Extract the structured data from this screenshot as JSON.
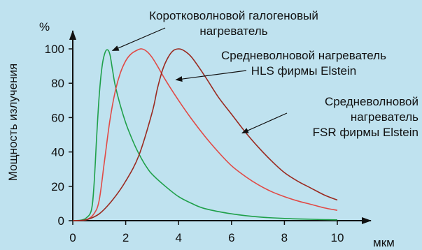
{
  "chart_data": {
    "type": "line",
    "title": "",
    "xlabel": "мкм",
    "ylabel": "Мощность излучения",
    "yunit": "%",
    "xlim": [
      0,
      10
    ],
    "ylim": [
      0,
      100
    ],
    "xticks": [
      "0",
      "2",
      "4",
      "6",
      "8",
      "10"
    ],
    "yticks": [
      "0",
      "20",
      "40",
      "60",
      "80",
      "100"
    ],
    "grid": false,
    "legend": "none",
    "series": [
      {
        "name": "Коротковолновой галогеновый нагреватель",
        "color": "#1fa04a",
        "x": [
          0,
          0.3,
          0.5,
          0.7,
          0.8,
          0.9,
          1.0,
          1.1,
          1.2,
          1.3,
          1.4,
          1.5,
          1.6,
          1.8,
          2.0,
          2.2,
          2.4,
          2.6,
          2.8,
          3.0,
          3.5,
          4.0,
          4.5,
          5.0,
          6.0,
          7.0,
          8.0,
          9.0,
          10.0
        ],
        "values": [
          0,
          0.3,
          1.5,
          6,
          20,
          48,
          73,
          89,
          97,
          99.5,
          97,
          88,
          79,
          67,
          57,
          49,
          42,
          36,
          31,
          27,
          20,
          14,
          10,
          7,
          4,
          2.2,
          1.3,
          0.8,
          0.5
        ]
      },
      {
        "name": "Средневолновой нагреватель HLS фирмы Elstein",
        "color": "#e14a46",
        "x": [
          0,
          0.5,
          0.8,
          1.0,
          1.2,
          1.4,
          1.6,
          1.8,
          2.0,
          2.2,
          2.4,
          2.6,
          2.8,
          3.0,
          3.2,
          3.5,
          4.0,
          4.5,
          5.0,
          5.5,
          6.0,
          6.5,
          7.0,
          7.5,
          8.0,
          8.5,
          9.0,
          9.5,
          10.0
        ],
        "values": [
          0,
          0.5,
          4,
          12,
          35,
          58,
          75,
          86,
          93,
          97,
          99,
          100,
          98.5,
          95,
          90,
          82,
          70,
          59,
          49,
          40,
          32,
          26,
          21,
          17,
          14,
          11.5,
          9.5,
          7.5,
          6
        ]
      },
      {
        "name": "Средневолновой нагреватель FSR фирмы Elstein",
        "color": "#9a2a20",
        "x": [
          0,
          0.5,
          1.0,
          1.5,
          2.0,
          2.5,
          3.0,
          3.2,
          3.4,
          3.6,
          3.8,
          4.0,
          4.2,
          4.5,
          5.0,
          5.5,
          6.0,
          6.5,
          7.0,
          7.5,
          8.0,
          8.5,
          9.0,
          9.5,
          10.0
        ],
        "values": [
          0,
          0.5,
          4,
          12,
          23,
          38,
          63,
          77,
          88,
          95,
          99,
          100,
          99,
          95,
          84,
          72,
          62,
          52,
          43,
          35,
          28,
          23,
          19,
          15,
          12
        ]
      }
    ],
    "annotations": [
      {
        "lines": [
          "Коротковолновой галогеновый",
          "нагреватель"
        ],
        "target": [
          1.5,
          99
        ]
      },
      {
        "lines": [
          "Средневолновой нагреватель",
          "HLS фирмы Elstein"
        ],
        "target": [
          3.9,
          82
        ]
      },
      {
        "lines": [
          "Средневолновой",
          "нагреватель",
          "FSR фирмы Elstein"
        ],
        "target": [
          6.4,
          51
        ]
      }
    ]
  }
}
